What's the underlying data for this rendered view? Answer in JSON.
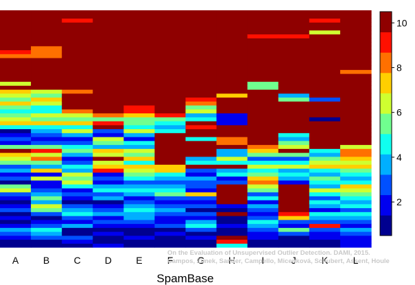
{
  "chart_data": {
    "type": "heatmap",
    "title": "",
    "xlabel": "SpamBase",
    "ylabel": "",
    "categories": [
      "A",
      "B",
      "C",
      "D",
      "E",
      "F",
      "G",
      "H",
      "I",
      "J",
      "K",
      "L"
    ],
    "colorbar": {
      "ticks": [
        "2",
        "4",
        "6",
        "8",
        "10"
      ],
      "range": [
        0.5,
        10.5
      ],
      "colors": [
        "#00008F",
        "#0000EF",
        "#0050FF",
        "#00AFFF",
        "#10FFEF",
        "#70FF8F",
        "#CFFF30",
        "#FFCF00",
        "#FF7000",
        "#FF1000",
        "#8F0000"
      ]
    },
    "columns": [
      [
        1,
        1,
        2,
        3,
        4,
        2,
        1,
        2,
        1,
        3,
        2,
        1,
        2,
        3,
        7,
        6,
        1,
        3,
        2,
        4,
        3,
        6,
        7,
        8,
        11,
        6,
        2,
        3,
        2,
        1,
        5,
        8,
        7,
        6,
        5,
        6,
        8,
        6,
        7,
        8,
        11,
        7,
        11,
        11,
        11,
        11,
        11,
        11,
        9,
        10,
        11,
        11,
        11,
        11,
        11,
        11,
        11,
        11,
        11,
        11
      ],
      [
        1,
        1,
        3,
        4,
        5,
        3,
        2,
        1,
        3,
        6,
        7,
        4,
        6,
        4,
        3,
        2,
        2,
        7,
        2,
        8,
        4,
        6,
        9,
        7,
        10,
        6,
        3,
        2,
        3,
        4,
        5,
        8,
        6,
        7,
        5,
        5,
        7,
        8,
        6,
        7,
        11,
        11,
        11,
        11,
        11,
        11,
        11,
        11,
        9,
        9,
        9,
        11,
        11,
        11,
        11,
        11,
        11,
        11,
        11,
        11
      ],
      [
        1,
        2,
        3,
        1,
        1,
        4,
        2,
        3,
        5,
        4,
        3,
        1,
        2,
        3,
        2,
        5,
        7,
        6,
        7,
        4,
        5,
        3,
        2,
        4,
        6,
        5,
        3,
        2,
        4,
        7,
        5,
        8,
        6,
        7,
        9,
        11,
        11,
        11,
        11,
        9,
        11,
        11,
        11,
        11,
        11,
        11,
        11,
        11,
        11,
        11,
        11,
        11,
        11,
        11,
        11,
        11,
        11,
        10,
        11,
        11
      ],
      [
        2,
        1,
        1,
        2,
        1,
        2,
        3,
        2,
        4,
        3,
        2,
        1,
        4,
        3,
        5,
        4,
        2,
        3,
        2,
        10,
        8,
        7,
        11,
        7,
        8,
        4,
        6,
        7,
        2,
        3,
        11,
        10,
        6,
        9,
        11,
        11,
        11,
        11,
        11,
        11,
        11,
        11,
        11,
        11,
        11,
        11,
        11,
        11,
        11,
        11,
        11,
        11,
        11,
        11,
        11,
        11,
        11,
        11,
        11,
        11
      ],
      [
        1,
        1,
        2,
        1,
        1,
        2,
        3,
        4,
        4,
        5,
        4,
        3,
        2,
        4,
        5,
        4,
        3,
        5,
        6,
        7,
        8,
        5,
        8,
        6,
        7,
        4,
        5,
        2,
        4,
        7,
        5,
        6,
        6,
        8,
        10,
        10,
        11,
        11,
        11,
        11,
        11,
        11,
        11,
        11,
        11,
        11,
        11,
        11,
        11,
        11,
        11,
        11,
        11,
        11,
        11,
        11,
        11,
        11,
        11,
        11
      ],
      [
        1,
        1,
        1,
        2,
        1,
        3,
        2,
        2,
        3,
        4,
        3,
        2,
        3,
        6,
        5,
        4,
        3,
        4,
        5,
        8,
        8,
        11,
        11,
        11,
        11,
        11,
        11,
        11,
        11,
        5,
        4,
        5,
        6,
        10,
        11,
        11,
        11,
        11,
        11,
        11,
        11,
        11,
        11,
        11,
        11,
        11,
        11,
        11,
        11,
        11,
        11,
        11,
        11,
        11,
        11,
        11,
        11,
        11,
        11,
        11
      ],
      [
        1,
        1,
        2,
        1,
        3,
        5,
        4,
        2,
        3,
        1,
        3,
        2,
        3,
        8,
        2,
        3,
        3,
        4,
        2,
        3,
        11,
        5,
        4,
        11,
        11,
        11,
        11,
        5,
        11,
        11,
        10,
        11,
        5,
        4,
        7,
        6,
        9,
        10,
        11,
        11,
        11,
        11,
        11,
        11,
        11,
        11,
        11,
        11,
        11,
        11,
        11,
        11,
        11,
        11,
        11,
        11,
        11,
        11,
        11,
        11
      ],
      [
        5,
        10,
        11,
        1,
        1,
        2,
        1,
        1,
        11,
        1,
        2,
        11,
        11,
        11,
        11,
        11,
        3,
        2,
        5,
        4,
        11,
        5,
        7,
        4,
        4,
        11,
        9,
        9,
        11,
        11,
        11,
        2,
        2,
        2,
        11,
        11,
        11,
        11,
        8,
        11,
        11,
        11,
        11,
        11,
        11,
        11,
        11,
        11,
        11,
        11,
        11,
        11,
        11,
        11,
        11,
        11,
        11,
        11,
        11,
        11
      ],
      [
        1,
        1,
        2,
        2,
        3,
        4,
        5,
        3,
        2,
        3,
        4,
        2,
        5,
        3,
        6,
        7,
        9,
        8,
        6,
        5,
        7,
        5,
        3,
        6,
        8,
        9,
        11,
        11,
        11,
        11,
        11,
        11,
        11,
        11,
        11,
        11,
        11,
        11,
        11,
        11,
        6,
        6,
        11,
        11,
        11,
        11,
        11,
        11,
        11,
        11,
        11,
        11,
        11,
        10,
        11,
        11,
        11,
        11,
        11,
        11
      ],
      [
        1,
        1,
        1,
        3,
        6,
        2,
        3,
        8,
        10,
        11,
        11,
        11,
        11,
        11,
        11,
        11,
        2,
        4,
        5,
        4,
        7,
        5,
        3,
        6,
        11,
        7,
        6,
        4,
        5,
        11,
        11,
        11,
        11,
        11,
        11,
        11,
        11,
        6,
        4,
        11,
        11,
        11,
        11,
        11,
        11,
        11,
        11,
        11,
        11,
        11,
        11,
        11,
        11,
        10,
        11,
        11,
        11,
        11,
        11,
        11
      ],
      [
        1,
        1,
        2,
        2,
        3,
        10,
        3,
        4,
        5,
        2,
        4,
        5,
        3,
        5,
        7,
        4,
        5,
        6,
        4,
        5,
        8,
        7,
        6,
        4,
        5,
        11,
        11,
        11,
        11,
        11,
        11,
        11,
        1,
        11,
        11,
        11,
        11,
        3,
        11,
        11,
        11,
        11,
        11,
        11,
        11,
        11,
        11,
        11,
        11,
        11,
        11,
        11,
        11,
        11,
        7,
        11,
        11,
        10,
        11,
        11
      ],
      [
        2,
        2,
        2,
        3,
        4,
        2,
        3,
        4,
        5,
        3,
        5,
        4,
        5,
        6,
        7,
        8,
        5,
        4,
        5,
        6,
        8,
        7,
        8,
        9,
        9,
        7,
        11,
        11,
        11,
        11,
        11,
        11,
        11,
        11,
        11,
        11,
        11,
        11,
        11,
        11,
        11,
        11,
        11,
        11,
        9,
        11,
        11,
        11,
        11,
        11,
        11,
        11,
        11,
        11,
        11,
        11,
        11,
        11,
        11,
        11
      ]
    ]
  },
  "watermark": {
    "line1": "On the Evaluation of Unsupervised Outlier Detection. DAMI, 2015.",
    "line2": "Campos, Zimek, Sander, Campello, Micenková, Schubert, Assent, Houle"
  }
}
